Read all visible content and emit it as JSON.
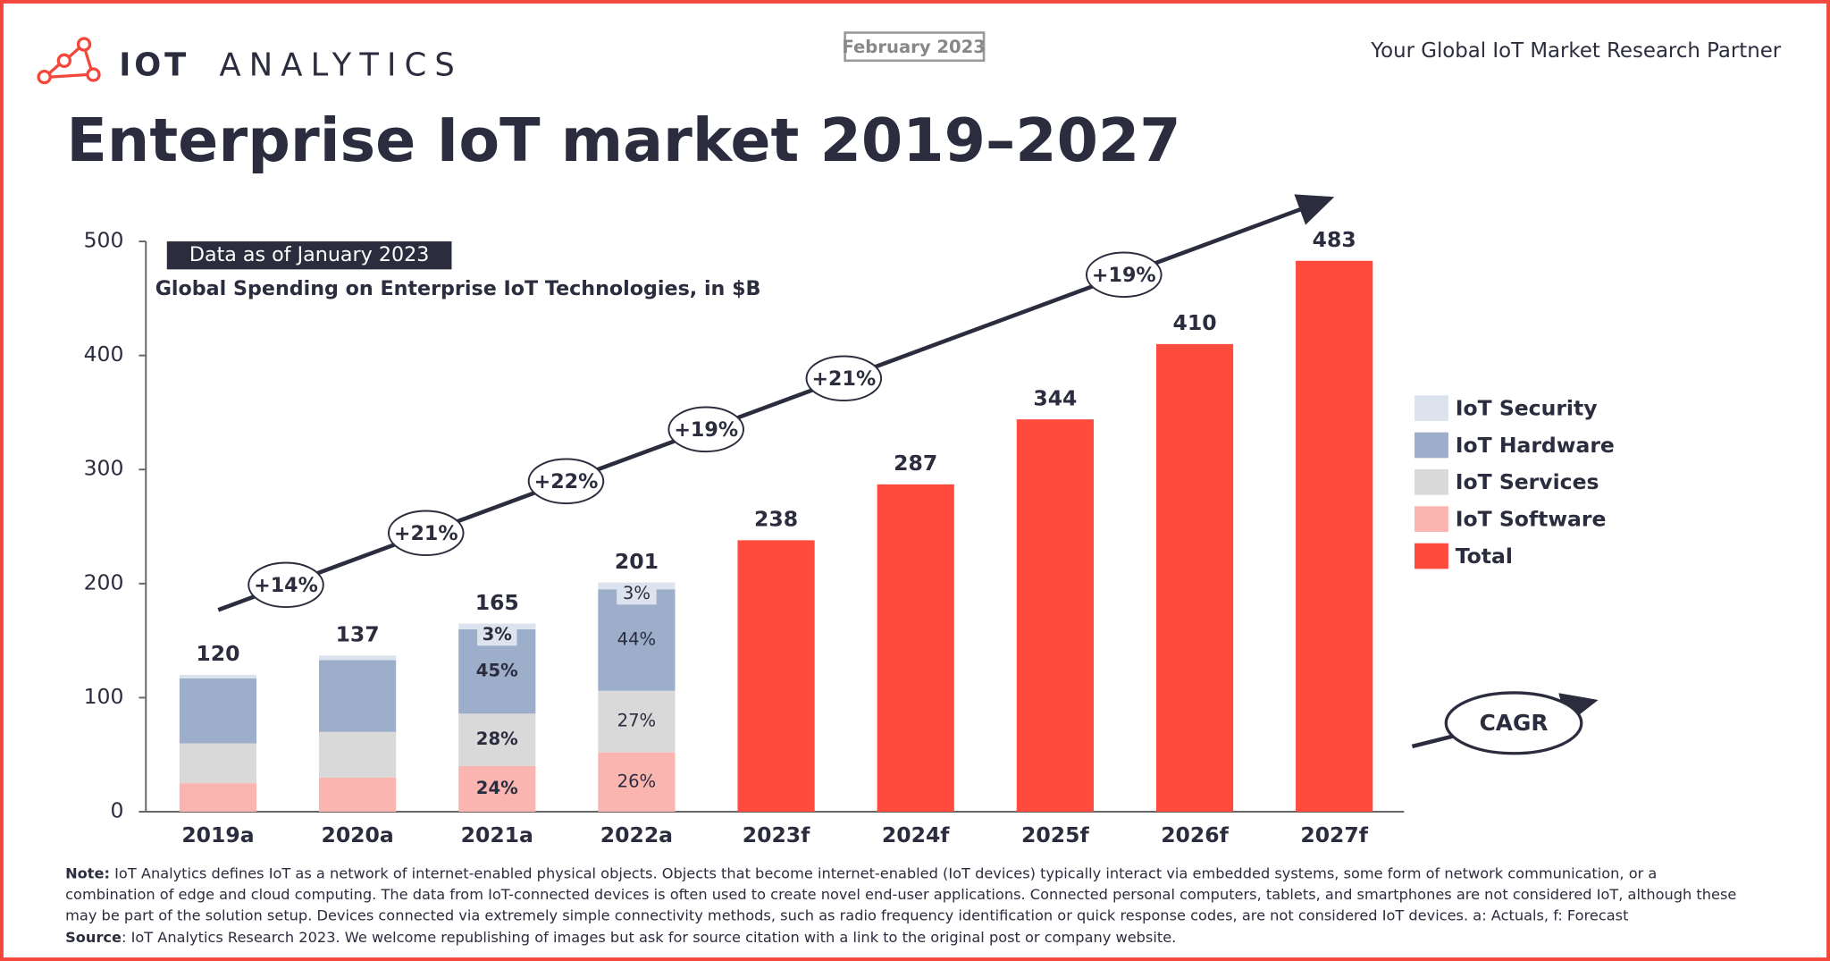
{
  "header": {
    "logo_bold": "IOT",
    "logo_light": "ANALYTICS",
    "date": "February 2023",
    "tagline": "Your Global IoT Market Research Partner"
  },
  "chart_data": {
    "type": "stacked-bar",
    "title": "Enterprise IoT market 2019–2027",
    "badge": "Data as of January 2023",
    "subtitle": "Global Spending on Enterprise IoT Technologies, in $B",
    "categories": [
      "2019a",
      "2020a",
      "2021a",
      "2022a",
      "2023f",
      "2024f",
      "2025f",
      "2026f",
      "2027f"
    ],
    "series": [
      {
        "name": "IoT Software",
        "color": "#fbb5b0",
        "values": [
          25,
          30,
          40,
          52,
          null,
          null,
          null,
          null,
          null
        ],
        "value_labels": [
          null,
          null,
          "24%",
          "26%",
          null,
          null,
          null,
          null,
          null
        ]
      },
      {
        "name": "IoT Services",
        "color": "#d9d9d9",
        "values": [
          35,
          40,
          46,
          54,
          null,
          null,
          null,
          null,
          null
        ],
        "value_labels": [
          null,
          null,
          "28%",
          "27%",
          null,
          null,
          null,
          null,
          null
        ]
      },
      {
        "name": "IoT Hardware",
        "color": "#9daecb",
        "values": [
          57,
          63,
          74,
          89,
          null,
          null,
          null,
          null,
          null
        ],
        "value_labels": [
          null,
          null,
          "45%",
          "44%",
          null,
          null,
          null,
          null,
          null
        ]
      },
      {
        "name": "IoT Security",
        "color": "#dde3ee",
        "values": [
          3,
          4,
          5,
          6,
          null,
          null,
          null,
          null,
          null
        ],
        "value_labels": [
          null,
          null,
          "3%",
          "3%",
          null,
          null,
          null,
          null,
          null
        ]
      },
      {
        "name": "Total",
        "color": "#ff4b3e",
        "values": [
          120,
          137,
          165,
          201,
          238,
          287,
          344,
          410,
          483
        ]
      }
    ],
    "ylim": [
      0,
      500
    ],
    "yticks": [
      0,
      100,
      200,
      300,
      400,
      500
    ],
    "growth_labels": [
      "+14%",
      "+21%",
      "+22%",
      "+19%",
      "+21%",
      "+19%"
    ],
    "growth_legend": "CAGR"
  },
  "footer": {
    "note_label": "Note:",
    "note": "IoT Analytics defines IoT as a network of internet-enabled physical objects. Objects that become internet-enabled (IoT devices) typically interact via embedded systems, some form of network communication, or a combination of edge and cloud computing. The data from IoT-connected devices is often used to create novel end-user applications. Connected personal computers, tablets, and smartphones are not considered IoT, although these may be part of the solution setup. Devices connected via extremely simple connectivity methods, such as radio frequency identification or quick response codes, are not considered IoT devices. a: Actuals, f: Forecast",
    "source_label": "Source",
    "source": ": IoT Analytics Research 2023. We welcome republishing of images but ask for source citation with a link to the original post or company website."
  }
}
